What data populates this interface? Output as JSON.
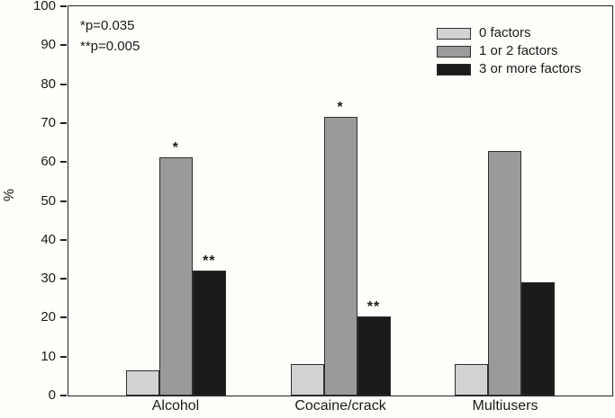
{
  "chart_data": {
    "type": "bar",
    "title": "",
    "categories": [
      "Alcohol",
      "Cocaine/crack",
      "Multiusers"
    ],
    "series": [
      {
        "name": "0 factors",
        "color": "#d2d2d2",
        "values": [
          6.5,
          8,
          8
        ]
      },
      {
        "name": "1 or 2 factors",
        "color": "#9a9a9a",
        "values": [
          61.2,
          71.6,
          62.8
        ]
      },
      {
        "name": "3 or more factors",
        "color": "#1b1b1b",
        "values": [
          32,
          20.3,
          29
        ]
      }
    ],
    "significance_markers": [
      {
        "category_index": 0,
        "series_index": 1,
        "label": "*"
      },
      {
        "category_index": 0,
        "series_index": 2,
        "label": "**"
      },
      {
        "category_index": 1,
        "series_index": 1,
        "label": "*"
      },
      {
        "category_index": 1,
        "series_index": 2,
        "label": "**"
      }
    ],
    "annotations": [
      "*p=0.035",
      "**p=0.005"
    ],
    "xlabel": "",
    "ylabel": "%",
    "ylim": [
      0,
      100
    ],
    "yticks": [
      0,
      10,
      20,
      30,
      40,
      50,
      60,
      70,
      80,
      90,
      100
    ],
    "legend_position": "top-right",
    "legend_labels": [
      "0 factors",
      "1 or 2 factors",
      "3 or more factors"
    ],
    "grid": false,
    "axis_color": "#222222",
    "background_color": "#fffefa"
  }
}
